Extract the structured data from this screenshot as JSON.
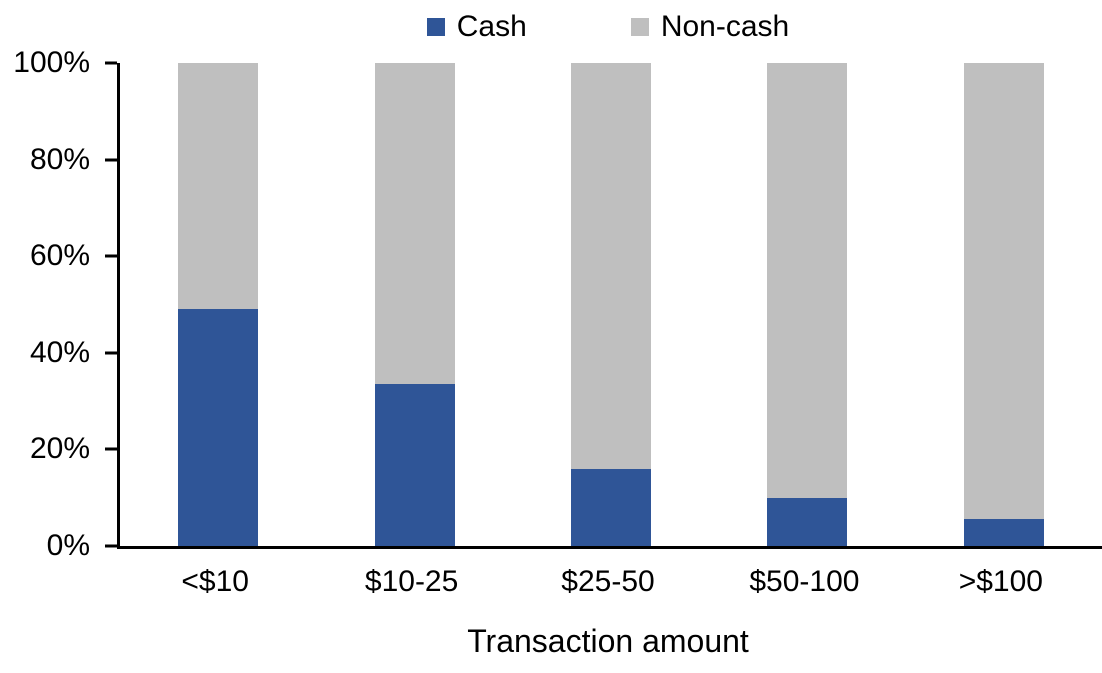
{
  "chart_data": {
    "type": "bar",
    "stacked": true,
    "orientation": "vertical",
    "title": "",
    "xlabel": "Transaction amount",
    "ylabel": "",
    "categories": [
      "<$10",
      "$10-25",
      "$25-50",
      "$50-100",
      ">$100"
    ],
    "series": [
      {
        "name": "Cash",
        "color": "#2F5597",
        "values": [
          49,
          33.5,
          16,
          10,
          5.5
        ]
      },
      {
        "name": "Non-cash",
        "color": "#BFBFBF",
        "values": [
          51,
          66.5,
          84,
          90,
          94.5
        ]
      }
    ],
    "y_axis": {
      "min": 0,
      "max": 100,
      "step": 20,
      "tick_labels": [
        "0%",
        "20%",
        "40%",
        "60%",
        "80%",
        "100%"
      ]
    },
    "legend": {
      "position": "top",
      "entries": [
        "Cash",
        "Non-cash"
      ]
    },
    "grid": false,
    "background": "#FFFFFF",
    "axis_color": "#000000",
    "text_color": "#000000"
  }
}
